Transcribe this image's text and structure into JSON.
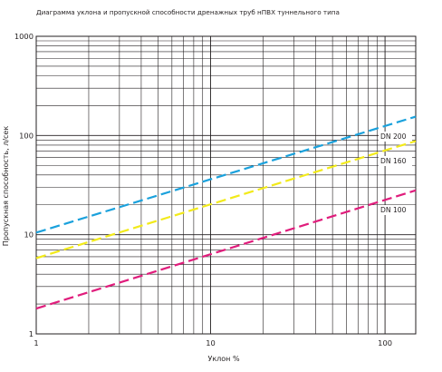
{
  "chart_data": {
    "type": "line",
    "title": "Диаграмма уклона и пропускной способности дренажных труб нПВХ туннельного типа",
    "xlabel": "Уклон    %",
    "ylabel": "Пропускная способность, л/сек",
    "x_scale": "log",
    "y_scale": "log",
    "xlim": [
      1,
      150
    ],
    "ylim": [
      1,
      1000
    ],
    "x_tick_labels": [
      {
        "value": 1,
        "label": "1"
      },
      {
        "value": 10,
        "label": "10"
      },
      {
        "value": 100,
        "label": "100"
      }
    ],
    "y_tick_labels": [
      {
        "value": 1,
        "label": "1"
      },
      {
        "value": 10,
        "label": "10"
      },
      {
        "value": 100,
        "label": "100"
      },
      {
        "value": 1000,
        "label": "1000"
      }
    ],
    "grid": true,
    "series": [
      {
        "name": "DN 200",
        "color": "#1aa1dc",
        "x": [
          1,
          150
        ],
        "y": [
          10.5,
          155
        ]
      },
      {
        "name": "DN 160",
        "color": "#f2ea1a",
        "x": [
          1,
          150
        ],
        "y": [
          5.8,
          88
        ]
      },
      {
        "name": "DN 100",
        "color": "#e01d7c",
        "x": [
          1,
          150
        ],
        "y": [
          1.8,
          28
        ]
      }
    ]
  }
}
